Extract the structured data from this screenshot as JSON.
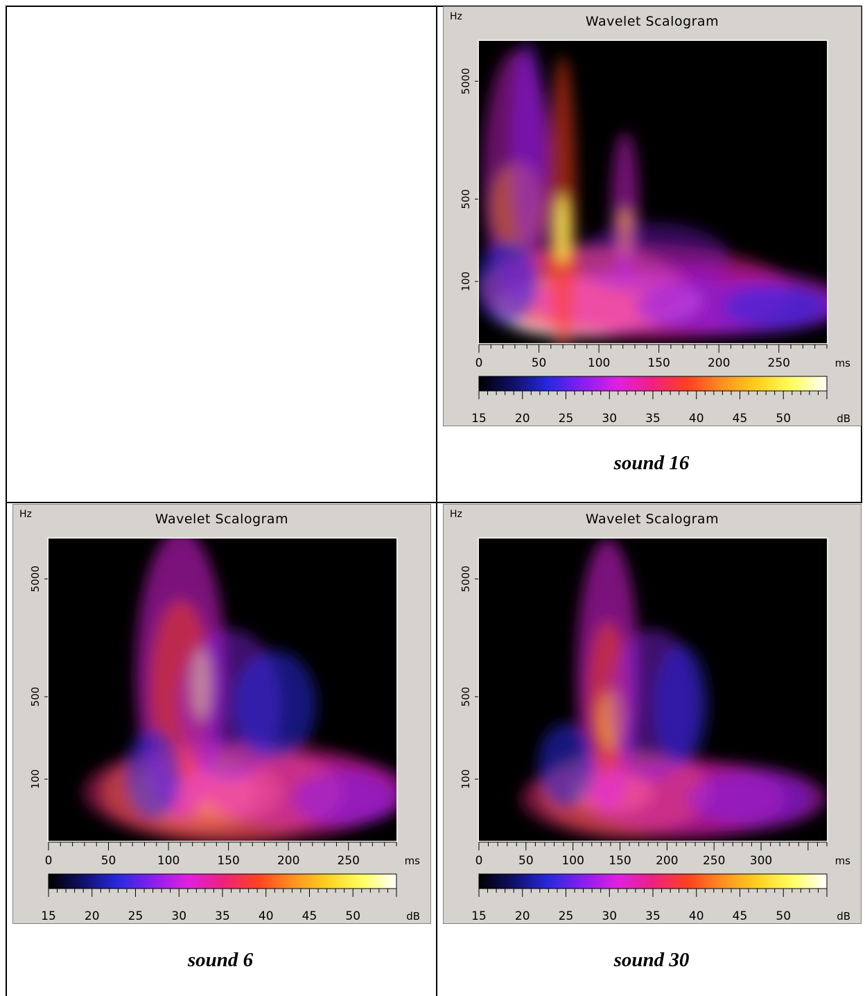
{
  "captions": {
    "tr": "sound 16",
    "bl": "sound 6",
    "br": "sound 30"
  },
  "chart_data": [
    {
      "type": "heatmap",
      "title": "Wavelet Scalogram",
      "ylabel": "Hz",
      "xlabel": "ms",
      "colorbar_label": "dB",
      "x_ticks": [
        "0",
        "50",
        "100",
        "150",
        "200",
        "250"
      ],
      "y_ticks": [
        "100",
        "500",
        "5000"
      ],
      "colorbar_ticks": [
        "15",
        "20",
        "25",
        "30",
        "35",
        "40",
        "45",
        "50"
      ],
      "xlim": [
        0,
        290
      ],
      "ylim": [
        30,
        11000
      ],
      "clim": [
        15,
        55
      ],
      "log_y": true
    },
    {
      "type": "heatmap",
      "title": "Wavelet Scalogram",
      "ylabel": "Hz",
      "xlabel": "ms",
      "colorbar_label": "dB",
      "x_ticks": [
        "0",
        "50",
        "100",
        "150",
        "200",
        "250"
      ],
      "y_ticks": [
        "100",
        "500",
        "5000"
      ],
      "colorbar_ticks": [
        "15",
        "20",
        "25",
        "30",
        "35",
        "40",
        "45",
        "50"
      ],
      "xlim": [
        0,
        290
      ],
      "ylim": [
        30,
        11000
      ],
      "clim": [
        15,
        55
      ],
      "log_y": true
    },
    {
      "type": "heatmap",
      "title": "Wavelet Scalogram",
      "ylabel": "Hz",
      "xlabel": "ms",
      "colorbar_label": "dB",
      "x_ticks": [
        "0",
        "50",
        "100",
        "150",
        "200",
        "250",
        "300"
      ],
      "y_ticks": [
        "100",
        "500",
        "5000"
      ],
      "colorbar_ticks": [
        "15",
        "20",
        "25",
        "30",
        "35",
        "40",
        "45",
        "50"
      ],
      "xlim": [
        0,
        370
      ],
      "ylim": [
        30,
        11000
      ],
      "clim": [
        15,
        55
      ],
      "log_y": true
    }
  ],
  "colormap": [
    "#000000",
    "#10106a",
    "#2828e0",
    "#8a1ef0",
    "#e020e0",
    "#f02080",
    "#ff4020",
    "#ff9020",
    "#ffd020",
    "#ffff60",
    "#ffffff"
  ]
}
